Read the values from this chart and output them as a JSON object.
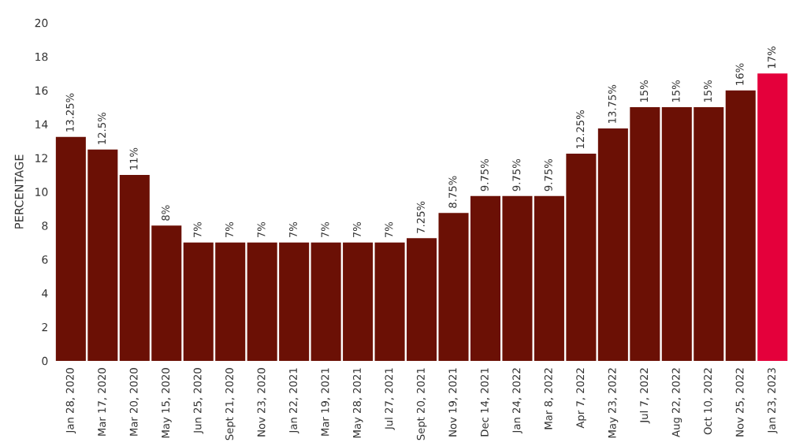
{
  "chart_data": {
    "type": "bar",
    "ylabel": "PERCENTAGE",
    "categories": [
      "Jan 28, 2020",
      "Mar 17, 2020",
      "Mar 20, 2020",
      "May 15, 2020",
      "Jun 25, 2020",
      "Sept 21, 2020",
      "Nov 23, 2020",
      "Jan 22, 2021",
      "Mar 19, 2021",
      "May 28, 2021",
      "Jul 27, 2021",
      "Sept 20, 2021",
      "Nov 19, 2021",
      "Dec 14, 2021",
      "Jan 24, 2022",
      "Mar 8, 2022",
      "Apr 7, 2022",
      "May 23, 2022",
      "Jul 7, 2022",
      "Aug 22, 2022",
      "Oct 10, 2022",
      "Nov 25, 2022",
      "Jan 23, 2023"
    ],
    "values": [
      13.25,
      12.5,
      11,
      8,
      7,
      7,
      7,
      7,
      7,
      7,
      7,
      7.25,
      8.75,
      9.75,
      9.75,
      9.75,
      12.25,
      13.75,
      15,
      15,
      15,
      16,
      17
    ],
    "value_labels": [
      "13.25%",
      "12.5%",
      "11%",
      "8%",
      "7%",
      "7%",
      "7%",
      "7%",
      "7%",
      "7%",
      "7%",
      "7.25%",
      "8.75%",
      "9.75%",
      "9.75%",
      "9.75%",
      "12.25%",
      "13.75%",
      "15%",
      "15%",
      "15%",
      "16%",
      "17%"
    ],
    "colors": [
      "#6b1005",
      "#6b1005",
      "#6b1005",
      "#6b1005",
      "#6b1005",
      "#6b1005",
      "#6b1005",
      "#6b1005",
      "#6b1005",
      "#6b1005",
      "#6b1005",
      "#6b1005",
      "#6b1005",
      "#6b1005",
      "#6b1005",
      "#6b1005",
      "#6b1005",
      "#6b1005",
      "#6b1005",
      "#6b1005",
      "#6b1005",
      "#6b1005",
      "#e4003b"
    ],
    "ylim": [
      0,
      20
    ],
    "yticks": [
      0,
      2,
      4,
      6,
      8,
      10,
      12,
      14,
      16,
      18,
      20
    ],
    "grid": false,
    "legend": false
  }
}
